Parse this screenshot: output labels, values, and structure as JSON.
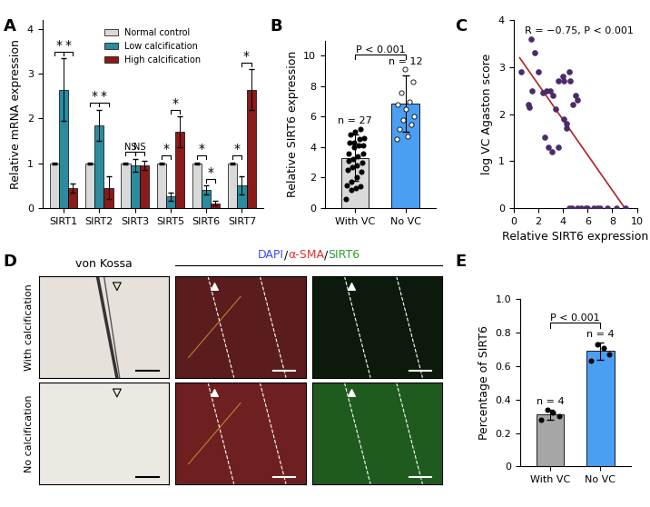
{
  "chart_data": [
    {
      "panel_label": "A",
      "type": "bar",
      "categories": [
        "SIRT1",
        "SIRT2",
        "SIRT3",
        "SIRT5",
        "SIRT6",
        "SIRT7"
      ],
      "series": [
        {
          "name": "Normal control",
          "color": "#d9d9d9",
          "values": [
            1,
            1,
            1,
            1,
            1,
            1
          ],
          "errors": [
            0.02,
            0.02,
            0.02,
            0.02,
            0.02,
            0.02
          ]
        },
        {
          "name": "Low calcification",
          "color": "#2a8c9e",
          "values": [
            2.65,
            1.85,
            0.95,
            0.25,
            0.4,
            0.5
          ],
          "errors": [
            0.7,
            0.35,
            0.15,
            0.1,
            0.1,
            0.2
          ]
        },
        {
          "name": "High calcification",
          "color": "#8b1a1a",
          "values": [
            0.45,
            0.45,
            0.95,
            1.7,
            0.1,
            2.65
          ],
          "errors": [
            0.1,
            0.25,
            0.1,
            0.35,
            0.05,
            0.45
          ]
        }
      ],
      "significance": [
        [
          "*",
          "*"
        ],
        [
          "*",
          "*"
        ],
        [
          "NS",
          "NS"
        ],
        [
          "*",
          "*"
        ],
        [
          "*",
          "*"
        ],
        [
          "*",
          "*"
        ]
      ],
      "ylabel": "Relative mRNA expression",
      "ylim": [
        0,
        4.2
      ],
      "yticks": [
        0,
        1,
        2,
        3,
        4
      ],
      "legend": "upper center"
    },
    {
      "panel_label": "B",
      "type": "bar",
      "categories": [
        "With VC",
        "No VC"
      ],
      "values": [
        3.3,
        6.85
      ],
      "errors": [
        1.55,
        1.85
      ],
      "colors": [
        "#d9d9d9",
        "#4a9ff5"
      ],
      "points": [
        [
          0.6,
          1.2,
          1.3,
          1.4,
          1.5,
          1.7,
          2.0,
          2.4,
          2.5,
          2.7,
          2.8,
          3.0,
          3.1,
          3.2,
          3.4,
          3.6,
          3.6,
          4.0,
          4.1,
          4.1,
          4.3,
          4.3,
          4.5,
          4.6,
          4.8,
          5.0,
          5.2
        ],
        [
          4.5,
          4.7,
          5.2,
          5.5,
          5.8,
          6.0,
          6.5,
          6.8,
          7.0,
          7.6,
          8.3,
          9.1
        ]
      ],
      "n_labels": [
        "n = 27",
        "n = 12"
      ],
      "annotation": "P < 0.001",
      "ylabel": "Relative SIRT6 expression",
      "ylim": [
        0,
        11
      ],
      "yticks": [
        0,
        2,
        4,
        6,
        8,
        10
      ]
    },
    {
      "panel_label": "C",
      "type": "scatter",
      "x": [
        0.6,
        1.2,
        1.3,
        1.4,
        1.5,
        1.7,
        2.0,
        2.4,
        2.5,
        2.7,
        2.8,
        3.0,
        3.1,
        3.2,
        3.4,
        3.6,
        3.6,
        4.0,
        4.1,
        4.1,
        4.3,
        4.3,
        4.5,
        4.6,
        4.8,
        5.0,
        5.2,
        4.5,
        4.7,
        5.2,
        5.5,
        5.8,
        6.0,
        6.5,
        6.8,
        7.0,
        7.6,
        8.3,
        9.1
      ],
      "y": [
        2.9,
        2.2,
        2.15,
        3.6,
        2.5,
        3.3,
        2.9,
        2.45,
        1.5,
        2.5,
        1.3,
        2.5,
        1.2,
        2.4,
        2.1,
        2.7,
        1.3,
        2.8,
        2.7,
        1.9,
        1.8,
        1.7,
        2.9,
        2.7,
        2.2,
        2.4,
        2.3,
        0,
        0,
        0,
        0,
        0,
        0,
        0,
        0,
        0,
        0,
        0,
        0
      ],
      "color": "#4b2a6b",
      "fit": {
        "x": [
          0.5,
          9.0
        ],
        "y": [
          3.2,
          0.0
        ]
      },
      "annotation": "R = −0.75, P < 0.001",
      "xlabel": "Relative SIRT6 expression",
      "ylabel": "log VC Agaston score",
      "xlim": [
        0,
        10
      ],
      "ylim": [
        0,
        4
      ],
      "xticks": [
        0,
        2,
        4,
        6,
        8,
        10
      ],
      "yticks": [
        0,
        1,
        2,
        3,
        4
      ]
    },
    {
      "panel_label": "D",
      "type": "image",
      "column_title": "von Kossa",
      "stain_label": [
        {
          "text": "DAPI",
          "color": "#3b4bff"
        },
        {
          "text": "/",
          "color": "#000000"
        },
        {
          "text": "α-SMA",
          "color": "#e03030"
        },
        {
          "text": "/",
          "color": "#000000"
        },
        {
          "text": "SIRT6",
          "color": "#2ca02c"
        }
      ],
      "rows": [
        "With calcification",
        "No calcification"
      ]
    },
    {
      "panel_label": "E",
      "type": "bar",
      "categories": [
        "With VC",
        "No VC"
      ],
      "values": [
        0.31,
        0.69
      ],
      "errors": [
        0.03,
        0.05
      ],
      "colors": [
        "#a6a6a6",
        "#4a9ff5"
      ],
      "points": [
        [
          0.28,
          0.3,
          0.32,
          0.34
        ],
        [
          0.63,
          0.67,
          0.71,
          0.73
        ]
      ],
      "n_labels": [
        "n = 4",
        "n = 4"
      ],
      "annotation": "P < 0.001",
      "ylabel": "Percentage of SIRT6",
      "ylim": [
        0,
        1.0
      ],
      "yticks": [
        0,
        0.2,
        0.4,
        0.6,
        0.8,
        {
          "value": 1.0,
          "label": "1.0"
        }
      ]
    }
  ]
}
